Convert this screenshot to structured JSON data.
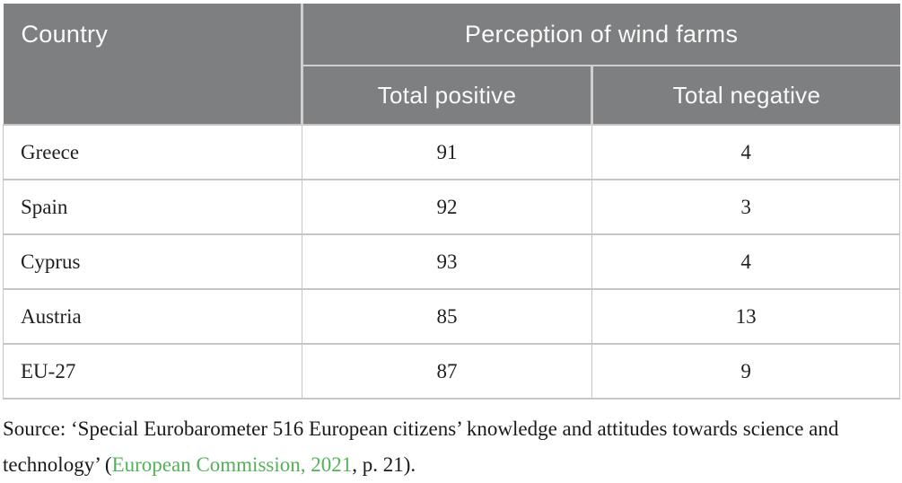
{
  "colors": {
    "header_bg": "#7e7f80",
    "header_text": "#fafafa",
    "header_divider": "#cfcfcf",
    "grid_line": "#c6c6c6",
    "body_text": "#1f1f1f",
    "link_green": "#53b257"
  },
  "table": {
    "header": {
      "country": "Country",
      "group": "Perception of wind farms",
      "positive": "Total positive",
      "negative": "Total negative"
    },
    "rows": [
      {
        "country": "Greece",
        "positive": "91",
        "negative": "4"
      },
      {
        "country": "Spain",
        "positive": "92",
        "negative": "3"
      },
      {
        "country": "Cyprus",
        "positive": "93",
        "negative": "4"
      },
      {
        "country": "Austria",
        "positive": "85",
        "negative": "13"
      },
      {
        "country": "EU-27",
        "positive": "87",
        "negative": "9"
      }
    ]
  },
  "source": {
    "prefix": "Source: ‘Special Eurobarometer 516 European citizens’ knowledge and attitudes towards science and technology’ (",
    "link_text": "European Commission, 2021",
    "suffix": ", p. 21)."
  },
  "chart_data": {
    "type": "table",
    "title": "Perception of wind farms",
    "columns": [
      "Country",
      "Total positive",
      "Total negative"
    ],
    "rows": [
      [
        "Greece",
        91,
        4
      ],
      [
        "Spain",
        92,
        3
      ],
      [
        "Cyprus",
        93,
        4
      ],
      [
        "Austria",
        85,
        13
      ],
      [
        "EU-27",
        87,
        9
      ]
    ]
  }
}
